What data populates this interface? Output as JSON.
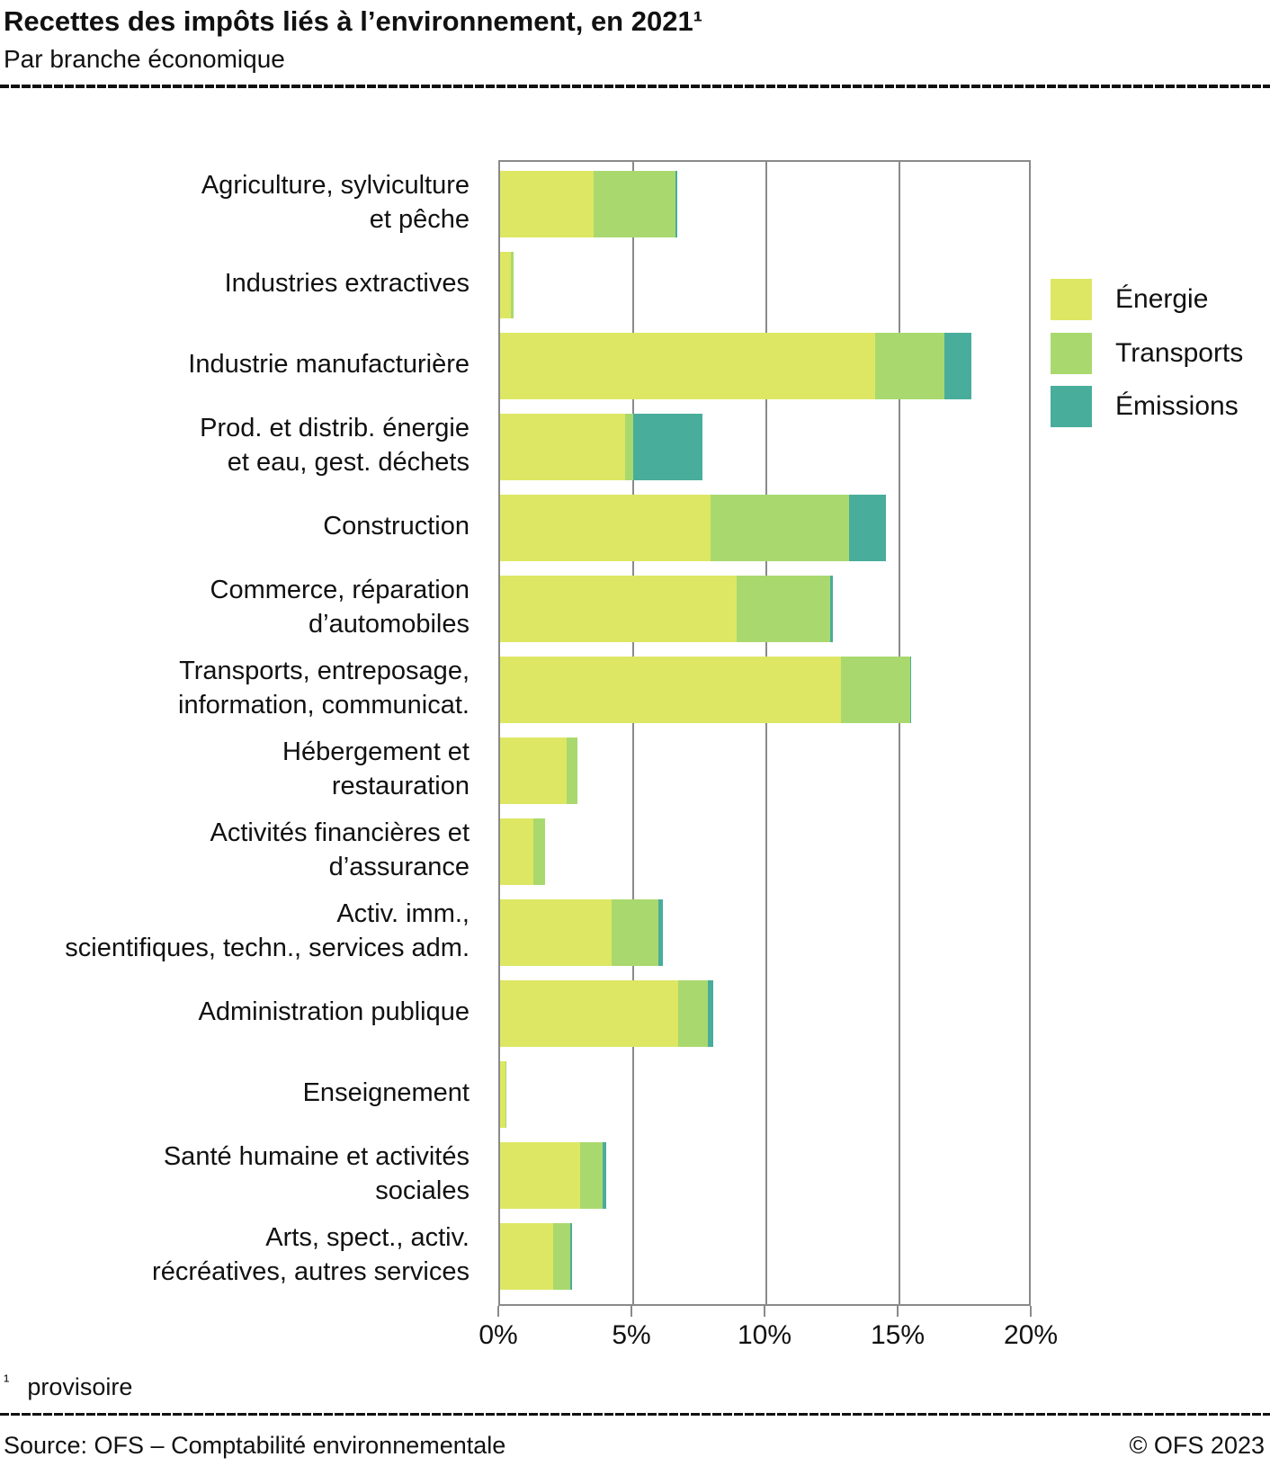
{
  "header": {
    "title": "Recettes des impôts liés à l’environnement, en 2021¹",
    "subtitle": "Par branche économique"
  },
  "footnote": {
    "marker": "¹",
    "text": "provisoire"
  },
  "footer": {
    "source": "Source: OFS – Comptabilité environnementale",
    "copyright": "© OFS 2023"
  },
  "colors": {
    "energie": "#dde763",
    "transports": "#a9d96e",
    "emissions": "#49ad9b",
    "grid": "#8a8a8a",
    "text": "#111111"
  },
  "legend": [
    {
      "label": "Énergie",
      "color": "#dde763"
    },
    {
      "label": "Transports",
      "color": "#a9d96e"
    },
    {
      "label": "Émissions",
      "color": "#49ad9b"
    }
  ],
  "chart_data": {
    "type": "bar",
    "orientation": "horizontal",
    "stacked": true,
    "unit": "%",
    "xlim": [
      0,
      20
    ],
    "x_tick_values": [
      0,
      5,
      10,
      15,
      20
    ],
    "x_ticks": [
      "0%",
      "5%",
      "10%",
      "15%",
      "20%"
    ],
    "grid": true,
    "legend_position": "right",
    "categories": [
      "Agriculture, sylviculture et pêche",
      "Industries extractives",
      "Industrie manufacturière",
      "Prod. et distrib. énergie et eau, gest. déchets",
      "Construction",
      "Commerce, réparation d’automobiles",
      "Transports, entreposage, information, communicat.",
      "Hébergement et restauration",
      "Activités financières et d’assurance",
      "Activ. imm., scientifiques, techn., services adm.",
      "Administration publique",
      "Enseignement",
      "Santé humaine et activités sociales",
      "Arts, spect., activ. récréatives, autres services"
    ],
    "category_label_lines": [
      [
        "Agriculture, sylviculture",
        "et pêche"
      ],
      [
        "Industries extractives"
      ],
      [
        "Industrie manufacturière"
      ],
      [
        "Prod. et distrib. énergie",
        "et eau, gest. déchets"
      ],
      [
        "Construction"
      ],
      [
        "Commerce, réparation",
        "d’automobiles"
      ],
      [
        "Transports, entreposage,",
        "information, communicat."
      ],
      [
        "Hébergement et",
        "restauration"
      ],
      [
        "Activités financières et",
        "d’assurance"
      ],
      [
        "Activ. imm.,",
        "scientifiques, techn., services adm."
      ],
      [
        "Administration publique"
      ],
      [
        "Enseignement"
      ],
      [
        "Santé humaine et activités",
        "sociales"
      ],
      [
        "Arts, spect., activ.",
        "récréatives, autres services"
      ]
    ],
    "series": [
      {
        "name": "Énergie",
        "color": "#dde763",
        "values": [
          3.5,
          0.4,
          14.1,
          4.7,
          7.9,
          8.9,
          12.8,
          2.5,
          1.25,
          4.2,
          6.7,
          0.2,
          3.0,
          2.0
        ]
      },
      {
        "name": "Transports",
        "color": "#a9d96e",
        "values": [
          3.1,
          0.1,
          2.6,
          0.3,
          5.2,
          3.5,
          2.6,
          0.4,
          0.45,
          1.75,
          1.1,
          0.05,
          0.85,
          0.65
        ]
      },
      {
        "name": "Émissions",
        "color": "#49ad9b",
        "values": [
          0.05,
          0,
          1.0,
          2.6,
          1.4,
          0.1,
          0.05,
          0,
          0,
          0.15,
          0.2,
          0,
          0.15,
          0.05
        ]
      }
    ]
  }
}
